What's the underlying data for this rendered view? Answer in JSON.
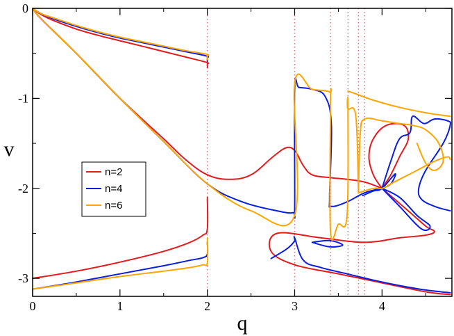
{
  "chart_data": {
    "type": "line",
    "title": "",
    "xlabel": "q",
    "ylabel": "v",
    "xlim": [
      0,
      4.8
    ],
    "ylim": [
      -3.2,
      0
    ],
    "x_ticks": [
      0,
      1,
      2,
      3,
      4
    ],
    "x_tick_labels": [
      "0",
      "1",
      "2",
      "3",
      "4"
    ],
    "y_ticks": [
      0,
      -1,
      -2,
      -3
    ],
    "y_tick_labels": [
      "0",
      "-1",
      "-2",
      "-3"
    ],
    "grid": false,
    "legend_position": "left-middle",
    "colors": {
      "n=2": "#e41a1c",
      "n=4": "#0a1ee0",
      "n=6": "#ffa500",
      "vlines": "#d26e78"
    },
    "vlines": [
      2.0,
      3.0,
      3.41,
      3.61,
      3.73,
      3.8
    ],
    "series": [
      {
        "name": "n=2",
        "curves": [
          {
            "x": [
              0,
              0.1,
              0.25,
              0.5,
              0.75,
              1.0,
              1.25,
              1.5,
              1.75,
              1.99,
              2.0,
              2.0
            ],
            "y": [
              0,
              -0.07,
              -0.14,
              -0.23,
              -0.3,
              -0.36,
              -0.42,
              -0.48,
              -0.54,
              -0.6,
              -0.62,
              -0.66
            ]
          },
          {
            "x": [
              0,
              0.1,
              0.5,
              1.0,
              1.5,
              1.75,
              2.0,
              2.25,
              2.5,
              2.75,
              2.9,
              3.0,
              3.1,
              3.2,
              3.4,
              3.6,
              3.8,
              4.0
            ],
            "y": [
              0,
              -0.12,
              -0.5,
              -1.0,
              -1.45,
              -1.68,
              -1.85,
              -1.9,
              -1.85,
              -1.65,
              -1.55,
              -1.58,
              -1.75,
              -1.85,
              -1.88,
              -1.9,
              -1.93,
              -2.0
            ]
          },
          {
            "x": [
              0,
              0.5,
              1.0,
              1.5,
              1.8,
              1.95,
              2.0,
              2.0
            ],
            "y": [
              -3.0,
              -2.92,
              -2.82,
              -2.7,
              -2.6,
              -2.52,
              -2.45,
              -2.1
            ]
          },
          {
            "x": [
              4.0,
              4.3,
              4.5,
              4.6,
              4.5,
              4.2,
              3.8,
              3.3,
              2.8,
              2.73,
              3.0,
              3.5,
              4.0,
              4.5,
              4.78
            ],
            "y": [
              -2.0,
              -2.25,
              -2.42,
              -2.48,
              -2.52,
              -2.55,
              -2.6,
              -2.55,
              -2.5,
              -2.7,
              -2.85,
              -2.95,
              -3.05,
              -3.15,
              -3.18
            ]
          },
          {
            "x": [
              4.0,
              4.1,
              4.2,
              4.3,
              4.25,
              4.05,
              3.9,
              3.85,
              3.9,
              4.0
            ],
            "y": [
              -2.0,
              -1.85,
              -1.65,
              -1.45,
              -1.3,
              -1.3,
              -1.45,
              -1.65,
              -1.85,
              -2.0
            ]
          }
        ]
      },
      {
        "name": "n=4",
        "curves": [
          {
            "x": [
              0,
              0.1,
              0.25,
              0.5,
              0.75,
              1.0,
              1.25,
              1.5,
              1.75,
              1.99,
              2.0,
              2.0
            ],
            "y": [
              0,
              -0.06,
              -0.12,
              -0.2,
              -0.27,
              -0.33,
              -0.38,
              -0.43,
              -0.48,
              -0.53,
              -0.55,
              -0.59
            ]
          },
          {
            "x": [
              0,
              0.1,
              0.5,
              1.0,
              1.5,
              2.0,
              2.4,
              2.8,
              2.98,
              3.0,
              3.0,
              3.05,
              3.2,
              3.35,
              3.42,
              3.4,
              3.42,
              3.6,
              3.8,
              4.0
            ],
            "y": [
              0,
              -0.12,
              -0.5,
              -1.0,
              -1.48,
              -1.95,
              -2.15,
              -2.25,
              -2.27,
              -2.2,
              -0.88,
              -0.88,
              -0.9,
              -0.98,
              -1.3,
              -2.1,
              -2.2,
              -2.15,
              -2.05,
              -2.0
            ]
          },
          {
            "x": [
              0,
              0.5,
              1.0,
              1.5,
              1.8,
              1.95,
              2.0,
              2.0
            ],
            "y": [
              -3.12,
              -3.04,
              -2.95,
              -2.86,
              -2.8,
              -2.77,
              -2.73,
              -2.6
            ]
          },
          {
            "x": [
              2.73,
              2.9,
              2.97,
              3.0,
              3.0,
              3.1,
              3.3,
              3.6,
              3.9,
              4.2,
              4.5,
              4.78
            ],
            "y": [
              -2.78,
              -2.68,
              -2.62,
              -2.58,
              -2.55,
              -2.8,
              -2.88,
              -2.95,
              -3.02,
              -3.08,
              -3.13,
              -3.16
            ]
          },
          {
            "x": [
              3.2,
              3.4,
              3.55,
              3.4,
              3.2
            ],
            "y": [
              -2.6,
              -2.58,
              -2.63,
              -2.65,
              -2.6
            ]
          },
          {
            "x": [
              4.0,
              4.1,
              4.2,
              4.32,
              4.35,
              4.48,
              4.6,
              4.75,
              4.78,
              4.7,
              4.5,
              4.42,
              4.45,
              4.6,
              4.78
            ],
            "y": [
              -2.0,
              -1.7,
              -1.45,
              -1.38,
              -1.2,
              -1.28,
              -1.23,
              -1.25,
              -1.3,
              -1.5,
              -1.8,
              -2.0,
              -2.12,
              -2.2,
              -2.25
            ]
          },
          {
            "x": [
              4.0,
              4.2,
              4.4,
              4.55,
              4.45,
              4.2,
              4.0
            ],
            "y": [
              -2.0,
              -2.1,
              -2.3,
              -2.42,
              -2.45,
              -2.2,
              -2.0
            ]
          },
          {
            "x": [
              3.78,
              3.9,
              4.0,
              4.15,
              4.1,
              4.0
            ],
            "y": [
              -2.08,
              -2.03,
              -2.0,
              -1.84,
              -1.95,
              -2.0
            ]
          }
        ]
      },
      {
        "name": "n=6",
        "curves": [
          {
            "x": [
              0,
              0.1,
              0.25,
              0.5,
              0.75,
              1.0,
              1.25,
              1.5,
              1.75,
              1.99,
              2.0,
              2.0
            ],
            "y": [
              0,
              -0.06,
              -0.11,
              -0.19,
              -0.26,
              -0.32,
              -0.37,
              -0.42,
              -0.47,
              -0.51,
              -0.53,
              -0.57
            ]
          },
          {
            "x": [
              0,
              0.1,
              0.5,
              1.0,
              1.5,
              2.0,
              2.5,
              3.0,
              3.0,
              3.2,
              3.4,
              3.41,
              3.41,
              3.5,
              3.6,
              3.61,
              3.61,
              3.7,
              3.73
            ],
            "y": [
              0,
              -0.12,
              -0.5,
              -1.0,
              -1.48,
              -1.95,
              -2.25,
              -2.3,
              -0.83,
              -0.9,
              -0.93,
              -1.05,
              -2.48,
              -2.4,
              -2.3,
              -1.08,
              -1.12,
              -1.2,
              -2.05
            ]
          },
          {
            "x": [
              0,
              0.5,
              1.0,
              1.5,
              1.8,
              1.95,
              2.0,
              2.0
            ],
            "y": [
              -3.12,
              -3.05,
              -2.98,
              -2.92,
              -2.88,
              -2.85,
              -2.83,
              -2.55
            ]
          },
          {
            "x": [
              3.61,
              3.7,
              3.9,
              4.2,
              4.5,
              4.78
            ],
            "y": [
              -0.92,
              -0.95,
              -1.02,
              -1.1,
              -1.16,
              -1.2
            ]
          },
          {
            "x": [
              3.73,
              3.75,
              3.8,
              4.0,
              4.2,
              4.35,
              4.5,
              4.65,
              4.7,
              4.6,
              4.5,
              4.4
            ],
            "y": [
              -2.05,
              -1.4,
              -1.23,
              -1.25,
              -1.28,
              -1.3,
              -1.35,
              -1.5,
              -1.7,
              -1.8,
              -1.72,
              -1.5
            ]
          },
          {
            "x": [
              3.73,
              3.9,
              4.0,
              4.1,
              4.2,
              4.4,
              4.6,
              4.75,
              4.78
            ],
            "y": [
              -2.05,
              -2.0,
              -2.0,
              -1.95,
              -1.9,
              -1.8,
              -1.7,
              -1.65,
              -1.68
            ]
          }
        ]
      }
    ]
  }
}
